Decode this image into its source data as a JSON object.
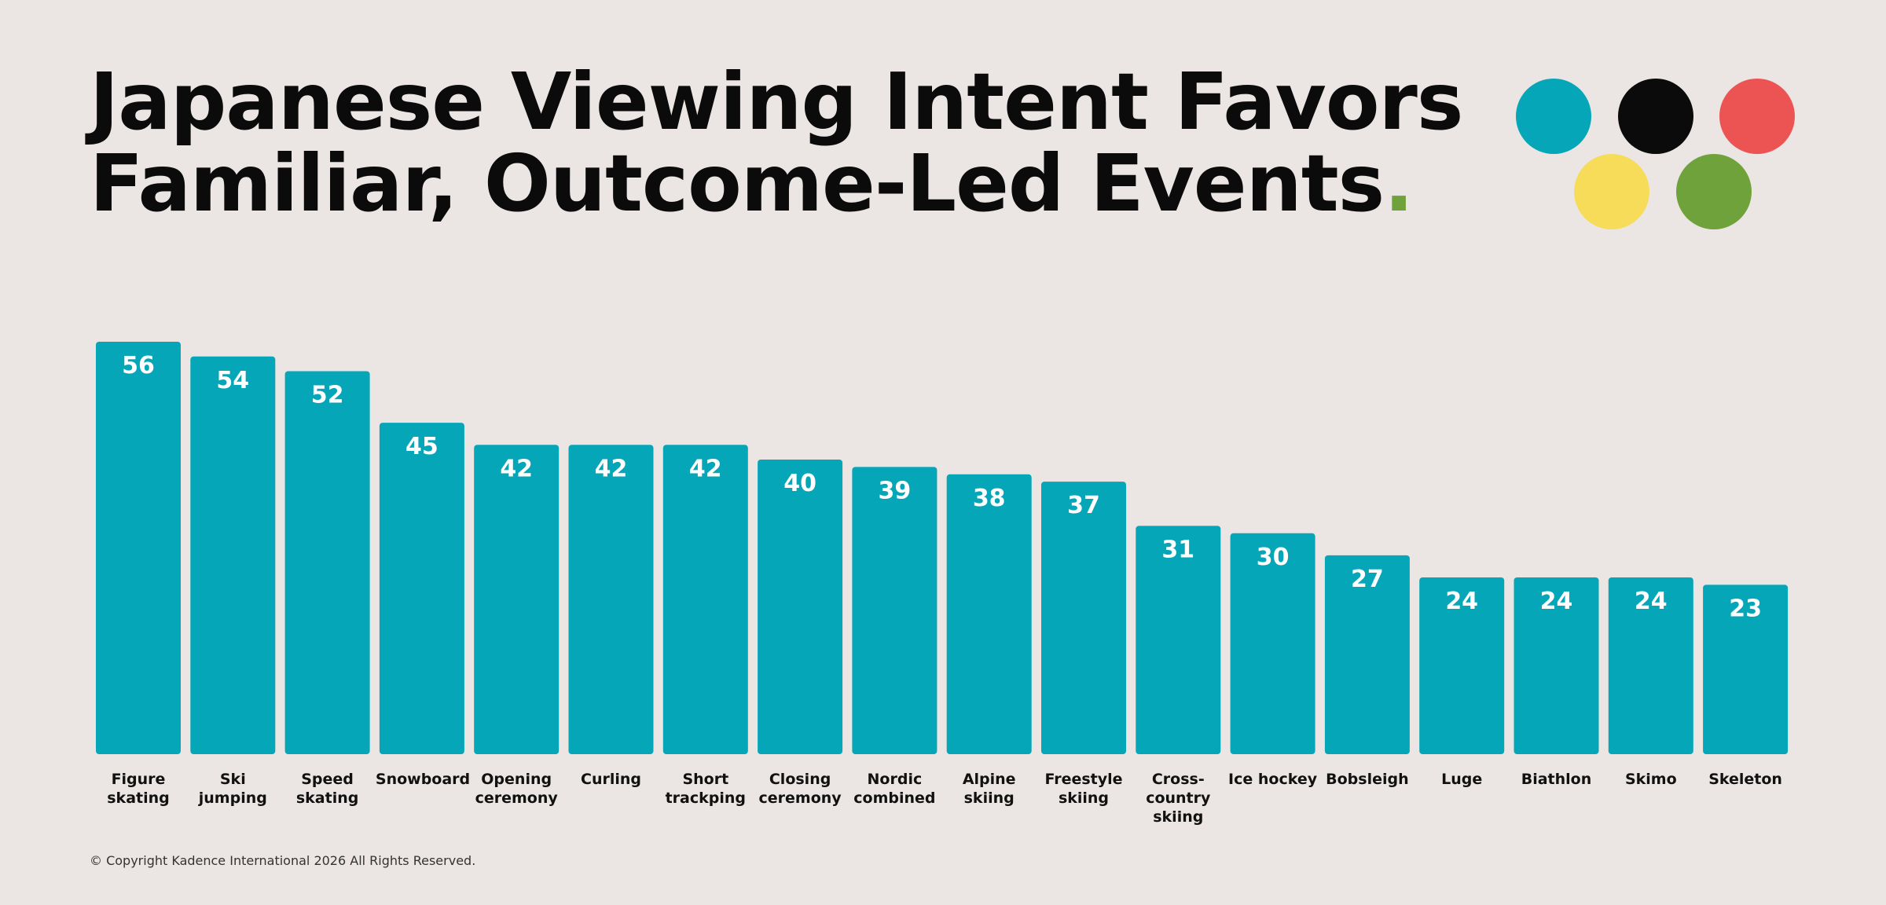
{
  "chart_data": {
    "type": "bar",
    "title_lines": [
      "Japanese Viewing Intent Favors",
      "Familiar, Outcome-Led Events"
    ],
    "title_mark": ".",
    "categories": [
      "Figure skating",
      "Ski jumping",
      "Speed skating",
      "Snowboard",
      "Opening ceremony",
      "Curling",
      "Short trackping",
      "Closing ceremony",
      "Nordic combined",
      "Alpine skiing",
      "Freestyle skiing",
      "Cross-country skiing",
      "Ice hockey",
      "Bobsleigh",
      "Luge",
      "Biathlon",
      "Skimo",
      "Skeleton"
    ],
    "values": [
      56,
      54,
      52,
      45,
      42,
      42,
      42,
      40,
      39,
      38,
      37,
      31,
      30,
      27,
      24,
      24,
      24,
      23
    ],
    "color": "#05a6b8",
    "footer": "© Copyright Kadence International 2026 All Rights Reserved."
  }
}
